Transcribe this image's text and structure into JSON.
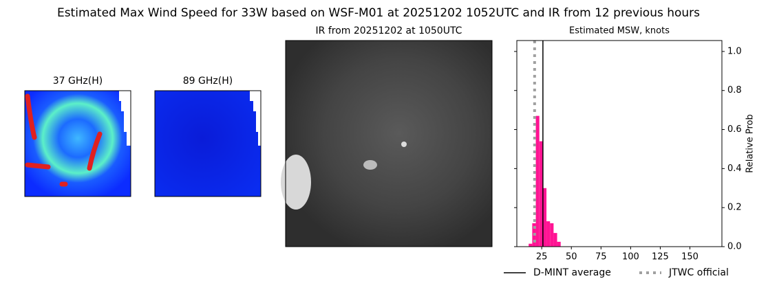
{
  "title": "Estimated Max Wind Speed for 33W based on WSF-M01 at 20251202 1052UTC and IR from 12 previous hours",
  "panels": [
    {
      "title": "37 GHz(H)"
    },
    {
      "title": "89 GHz(H)"
    },
    {
      "title": "IR from 20251202 at 1050UTC"
    }
  ],
  "chart_data": {
    "type": "histogram",
    "title": "Estimated MSW, knots",
    "y_label": "Relative Prob",
    "bins": [
      14,
      17,
      20,
      23,
      26,
      29,
      32,
      35,
      38,
      41
    ],
    "values": [
      0.015,
      0.12,
      0.67,
      0.54,
      0.3,
      0.13,
      0.12,
      0.07,
      0.025
    ],
    "color": "#ff1493",
    "xlim": [
      4,
      177
    ],
    "ylim": [
      0,
      1.056
    ],
    "xticks": [
      25,
      50,
      75,
      100,
      125,
      150
    ],
    "yticks": [
      {
        "value": 0,
        "label": "0.0"
      },
      {
        "value": 0.2,
        "label": "0.2"
      },
      {
        "value": 0.4,
        "label": "0.4"
      },
      {
        "value": 0.6,
        "label": "0.6"
      },
      {
        "value": 0.8,
        "label": "0.8"
      },
      {
        "value": 1,
        "label": "1.0"
      }
    ],
    "lines": [
      {
        "name": "D-MINT average",
        "value": 26,
        "color": "#000000",
        "style": "solid"
      },
      {
        "name": "JTWC official",
        "value": 19,
        "color": "#a0a0a0",
        "style": "dotted"
      }
    ]
  }
}
